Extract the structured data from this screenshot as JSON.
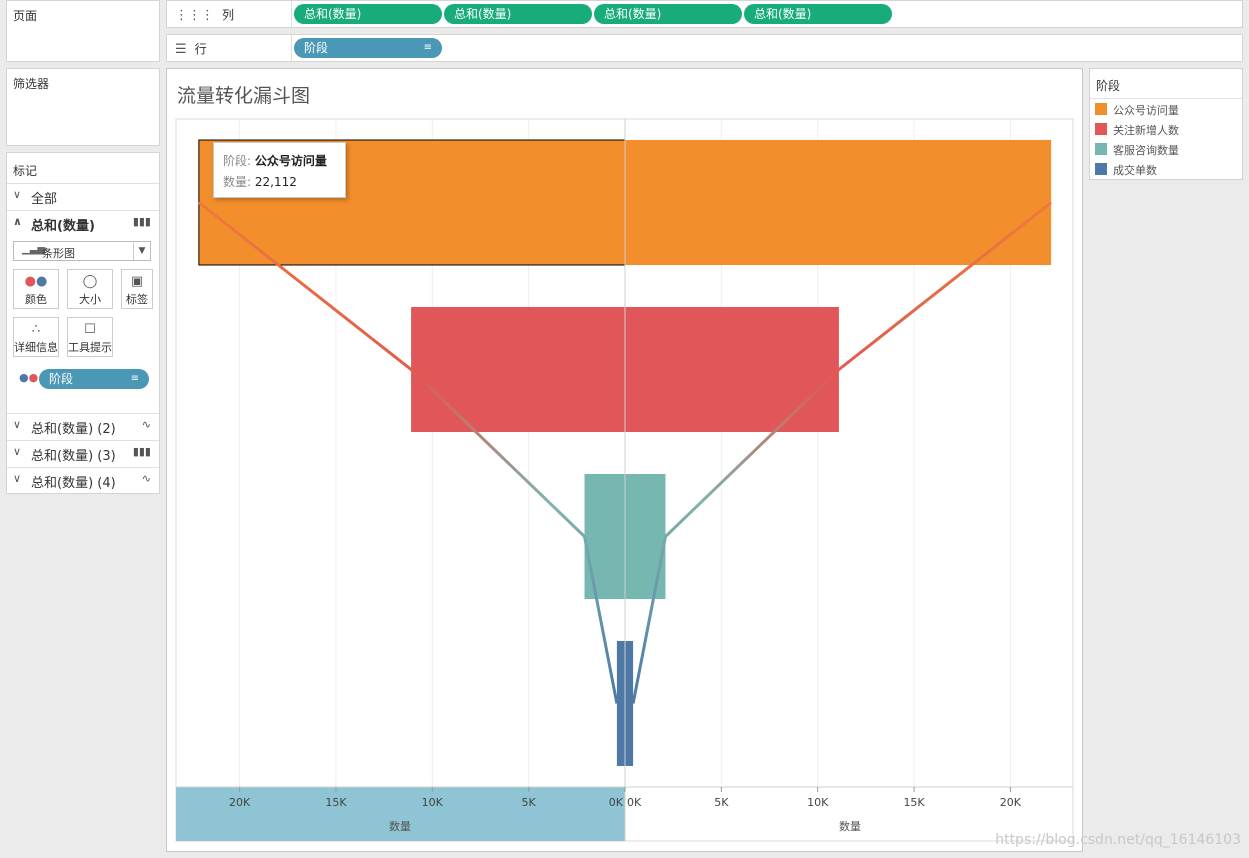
{
  "pages_card": {
    "title": "页面"
  },
  "filters_card": {
    "title": "筛选器"
  },
  "marks_card": {
    "title": "标记",
    "all_label": "全部",
    "active_label": "总和(数量)",
    "mark_type": "条形图",
    "buttons": {
      "color": "颜色",
      "size": "大小",
      "label": "标签",
      "detail": "详细信息",
      "tooltip": "工具提示"
    },
    "dimension_pill": "阶段",
    "other_layers": [
      "总和(数量) (2)",
      "总和(数量) (3)",
      "总和(数量) (4)"
    ]
  },
  "columns_shelf": {
    "label": "列",
    "pills": [
      "总和(数量)",
      "总和(数量)",
      "总和(数量)",
      "总和(数量)"
    ]
  },
  "rows_shelf": {
    "label": "行",
    "pills": [
      "阶段"
    ]
  },
  "chart_title": "流量转化漏斗图",
  "legend": {
    "title": "阶段",
    "items": [
      {
        "label": "公众号访问量",
        "color": "#f28e2b"
      },
      {
        "label": "关注新增人数",
        "color": "#e15759"
      },
      {
        "label": "客服咨询数量",
        "color": "#76b7b2"
      },
      {
        "label": "成交单数",
        "color": "#4e79a7"
      }
    ]
  },
  "tooltip": {
    "field_label": "阶段:",
    "field_value": "公众号访问量",
    "measure_label": "数量:",
    "measure_value": "22,112"
  },
  "chart_data": {
    "type": "bar",
    "categories": [
      "公众号访问量",
      "关注新增人数",
      "客服咨询数量",
      "成交单数"
    ],
    "values": [
      22112,
      11100,
      2100,
      420
    ],
    "colors": [
      "#f28e2b",
      "#e15759",
      "#76b7b2",
      "#4e79a7"
    ],
    "left_axis": {
      "title": "数量",
      "ticks": [
        "20K",
        "15K",
        "10K",
        "5K",
        "0K"
      ],
      "reversed": true
    },
    "right_axis": {
      "title": "数量",
      "ticks": [
        "0K",
        "5K",
        "10K",
        "15K",
        "20K"
      ]
    },
    "xlim": [
      0,
      23300
    ]
  },
  "watermark": "https://blog.csdn.net/qq_16146103"
}
